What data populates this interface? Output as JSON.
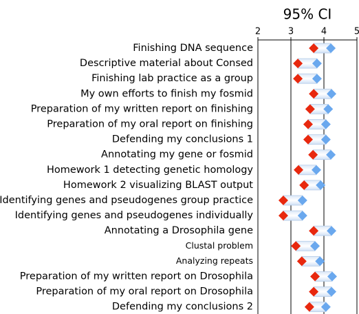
{
  "chart_data": {
    "type": "interval",
    "title": "95% CI",
    "categories": [
      "Finishing DNA sequence",
      "Descriptive material about Consed",
      "Finishing lab practice as a group",
      "My own efforts to finish my fosmid",
      "Preparation of my written report on finishing",
      "Preparation of my oral report on finishing",
      "Defending my conclusions 1",
      "Annotating my gene or fosmid",
      "Homework 1 detecting genetic homology",
      "Homework 2 visualizing BLAST output",
      "Identifying genes and pseudogenes group practice",
      "Identifying genes and pseudogenes individually",
      "Annotating a Drosophila gene",
      "Clustal problem",
      "Analyzing repeats",
      "Preparation of my written report on Drosophila",
      "Preparation of my oral report on Drosophila",
      "Defending my conclusions 2"
    ],
    "low": [
      3.69,
      3.21,
      3.21,
      3.69,
      3.58,
      3.52,
      3.52,
      3.67,
      3.23,
      3.4,
      2.77,
      2.77,
      3.69,
      3.15,
      3.33,
      3.73,
      3.69,
      3.56
    ],
    "high": [
      4.21,
      3.79,
      3.79,
      4.23,
      4.13,
      4.06,
      4.06,
      4.21,
      3.77,
      3.9,
      3.35,
      3.35,
      4.23,
      3.73,
      3.88,
      4.25,
      4.23,
      4.06
    ],
    "low_color": "#e8280e",
    "high_color": "#6aa8ee",
    "xlim": [
      2,
      5
    ],
    "xticks": [
      2,
      3,
      4,
      5
    ],
    "grid": true
  }
}
